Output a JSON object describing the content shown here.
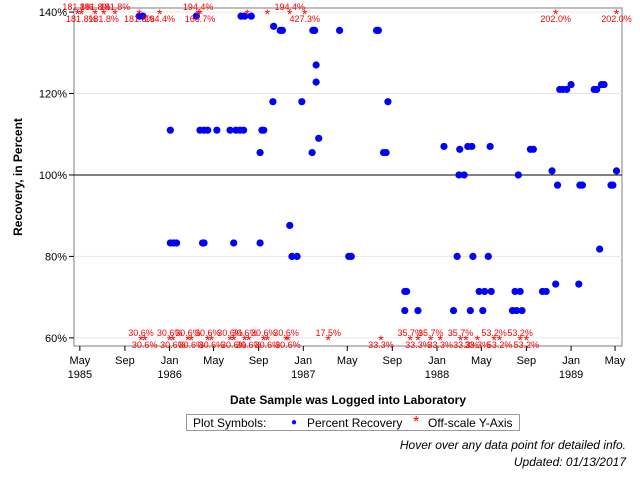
{
  "chart_data": {
    "type": "scatter",
    "xlabel": "Date Sample was Logged into Laboratory",
    "ylabel": "Recovery, in Percent",
    "xlim": [
      "1985-04-15",
      "1989-05-20"
    ],
    "ylim": [
      58,
      141
    ],
    "reference_line": 100,
    "grid": "horizontal",
    "x_ticks": [
      {
        "date": "1985-05-01",
        "label": "May",
        "sub": "1985"
      },
      {
        "date": "1985-09-01",
        "label": "Sep",
        "sub": ""
      },
      {
        "date": "1986-01-01",
        "label": "Jan",
        "sub": "1986"
      },
      {
        "date": "1986-05-01",
        "label": "May",
        "sub": ""
      },
      {
        "date": "1986-09-01",
        "label": "Sep",
        "sub": ""
      },
      {
        "date": "1987-01-01",
        "label": "Jan",
        "sub": "1987"
      },
      {
        "date": "1987-05-01",
        "label": "May",
        "sub": ""
      },
      {
        "date": "1987-09-01",
        "label": "Sep",
        "sub": ""
      },
      {
        "date": "1988-01-01",
        "label": "Jan",
        "sub": "1988"
      },
      {
        "date": "1988-05-01",
        "label": "May",
        "sub": ""
      },
      {
        "date": "1988-09-01",
        "label": "Sep",
        "sub": ""
      },
      {
        "date": "1989-01-01",
        "label": "Jan",
        "sub": "1989"
      },
      {
        "date": "1989-05-01",
        "label": "May",
        "sub": ""
      }
    ],
    "y_ticks": [
      {
        "value": 60,
        "label": "60%"
      },
      {
        "value": 80,
        "label": "80%"
      },
      {
        "value": 100,
        "label": "100%"
      },
      {
        "value": 120,
        "label": "120%"
      },
      {
        "value": 140,
        "label": "140%"
      }
    ],
    "series": [
      {
        "name": "Percent Recovery",
        "color": "#0000ff",
        "symbol": "circle",
        "points": [
          {
            "x": "1985-10-10",
            "y": 139
          },
          {
            "x": "1985-10-20",
            "y": 139
          },
          {
            "x": "1986-01-03",
            "y": 111
          },
          {
            "x": "1986-01-03",
            "y": 83.3
          },
          {
            "x": "1986-01-12",
            "y": 83.3
          },
          {
            "x": "1986-01-20",
            "y": 83.3
          },
          {
            "x": "1986-03-15",
            "y": 139
          },
          {
            "x": "1986-03-25",
            "y": 111
          },
          {
            "x": "1986-04-01",
            "y": 83.3
          },
          {
            "x": "1986-04-05",
            "y": 83.3
          },
          {
            "x": "1986-04-05",
            "y": 111
          },
          {
            "x": "1986-04-15",
            "y": 111
          },
          {
            "x": "1986-05-10",
            "y": 111
          },
          {
            "x": "1986-06-15",
            "y": 111
          },
          {
            "x": "1986-06-25",
            "y": 83.3
          },
          {
            "x": "1986-07-01",
            "y": 111
          },
          {
            "x": "1986-07-12",
            "y": 111
          },
          {
            "x": "1986-07-15",
            "y": 139
          },
          {
            "x": "1986-07-22",
            "y": 111
          },
          {
            "x": "1986-07-25",
            "y": 139
          },
          {
            "x": "1986-08-12",
            "y": 139
          },
          {
            "x": "1986-09-05",
            "y": 105.5
          },
          {
            "x": "1986-09-05",
            "y": 83.3
          },
          {
            "x": "1986-09-10",
            "y": 111
          },
          {
            "x": "1986-09-15",
            "y": 111
          },
          {
            "x": "1986-10-10",
            "y": 118
          },
          {
            "x": "1986-10-12",
            "y": 136.5
          },
          {
            "x": "1986-10-30",
            "y": 135.5
          },
          {
            "x": "1986-11-05",
            "y": 135.5
          },
          {
            "x": "1986-11-25",
            "y": 87.6
          },
          {
            "x": "1986-12-01",
            "y": 80
          },
          {
            "x": "1986-12-15",
            "y": 80
          },
          {
            "x": "1986-12-28",
            "y": 118
          },
          {
            "x": "1987-01-25",
            "y": 105.5
          },
          {
            "x": "1987-01-27",
            "y": 135.5
          },
          {
            "x": "1987-02-01",
            "y": 135.5
          },
          {
            "x": "1987-02-05",
            "y": 127
          },
          {
            "x": "1987-02-05",
            "y": 122.8
          },
          {
            "x": "1987-02-12",
            "y": 109
          },
          {
            "x": "1987-04-10",
            "y": 135.5
          },
          {
            "x": "1987-05-05",
            "y": 80
          },
          {
            "x": "1987-05-12",
            "y": 80
          },
          {
            "x": "1987-07-20",
            "y": 135.5
          },
          {
            "x": "1987-07-25",
            "y": 135.5
          },
          {
            "x": "1987-08-08",
            "y": 105.5
          },
          {
            "x": "1987-08-15",
            "y": 105.5
          },
          {
            "x": "1987-08-20",
            "y": 118
          },
          {
            "x": "1987-10-05",
            "y": 71.4
          },
          {
            "x": "1987-10-10",
            "y": 71.4
          },
          {
            "x": "1987-10-05",
            "y": 66.7
          },
          {
            "x": "1987-11-10",
            "y": 66.7
          },
          {
            "x": "1988-01-20",
            "y": 107
          },
          {
            "x": "1988-02-15",
            "y": 66.7
          },
          {
            "x": "1988-02-25",
            "y": 80
          },
          {
            "x": "1988-03-01",
            "y": 100
          },
          {
            "x": "1988-03-03",
            "y": 106.3
          },
          {
            "x": "1988-03-15",
            "y": 100
          },
          {
            "x": "1988-03-25",
            "y": 107
          },
          {
            "x": "1988-04-01",
            "y": 66.7
          },
          {
            "x": "1988-04-05",
            "y": 107
          },
          {
            "x": "1988-04-08",
            "y": 80
          },
          {
            "x": "1988-04-25",
            "y": 71.4
          },
          {
            "x": "1988-05-05",
            "y": 66.7
          },
          {
            "x": "1988-05-10",
            "y": 71.4
          },
          {
            "x": "1988-05-20",
            "y": 80
          },
          {
            "x": "1988-05-25",
            "y": 107
          },
          {
            "x": "1988-05-28",
            "y": 71.4
          },
          {
            "x": "1988-07-25",
            "y": 66.7
          },
          {
            "x": "1988-08-01",
            "y": 71.4
          },
          {
            "x": "1988-08-05",
            "y": 66.7
          },
          {
            "x": "1988-08-10",
            "y": 100
          },
          {
            "x": "1988-08-15",
            "y": 71.4
          },
          {
            "x": "1988-08-20",
            "y": 66.7
          },
          {
            "x": "1988-09-12",
            "y": 106.3
          },
          {
            "x": "1988-09-20",
            "y": 106.3
          },
          {
            "x": "1988-10-15",
            "y": 71.4
          },
          {
            "x": "1988-10-25",
            "y": 71.4
          },
          {
            "x": "1988-11-10",
            "y": 101
          },
          {
            "x": "1988-11-20",
            "y": 73.2
          },
          {
            "x": "1988-11-25",
            "y": 97.5
          },
          {
            "x": "1988-12-01",
            "y": 121
          },
          {
            "x": "1988-12-10",
            "y": 121
          },
          {
            "x": "1988-12-20",
            "y": 121
          },
          {
            "x": "1989-01-01",
            "y": 122.2
          },
          {
            "x": "1989-01-22",
            "y": 73.2
          },
          {
            "x": "1989-01-25",
            "y": 97.5
          },
          {
            "x": "1989-02-01",
            "y": 97.5
          },
          {
            "x": "1989-03-05",
            "y": 121
          },
          {
            "x": "1989-03-12",
            "y": 121
          },
          {
            "x": "1989-03-20",
            "y": 81.8
          },
          {
            "x": "1989-03-25",
            "y": 122.2
          },
          {
            "x": "1989-04-01",
            "y": 122.2
          },
          {
            "x": "1989-04-20",
            "y": 97.5
          },
          {
            "x": "1989-04-25",
            "y": 97.5
          },
          {
            "x": "1989-05-05",
            "y": 101
          }
        ]
      },
      {
        "name": "Off-scale Y-Axis",
        "color": "#ff0000",
        "symbol": "star",
        "points": [
          {
            "x": "1985-04-25",
            "y": 140,
            "label": "181.8%",
            "side": "above"
          },
          {
            "x": "1985-05-05",
            "y": 140,
            "label": "181.8%",
            "side": "below"
          },
          {
            "x": "1985-06-12",
            "y": 140,
            "label": "181.8%",
            "side": "above"
          },
          {
            "x": "1985-07-05",
            "y": 140,
            "label": "181.8%",
            "side": "below"
          },
          {
            "x": "1985-08-05",
            "y": 140,
            "label": "181.8%",
            "side": "above"
          },
          {
            "x": "1985-10-10",
            "y": 140,
            "label": "181.8%",
            "side": "below"
          },
          {
            "x": "1985-12-05",
            "y": 140,
            "label": "194.4%",
            "side": "below"
          },
          {
            "x": "1986-03-20",
            "y": 140,
            "label": "194.4%",
            "side": "above"
          },
          {
            "x": "1986-03-25",
            "y": 140,
            "label": "166.7%",
            "side": "below"
          },
          {
            "x": "1986-08-01",
            "y": 140,
            "label": "",
            "side": "above"
          },
          {
            "x": "1986-09-25",
            "y": 140,
            "label": "",
            "side": "above"
          },
          {
            "x": "1986-11-25",
            "y": 140,
            "label": "194.4%",
            "side": "above"
          },
          {
            "x": "1987-01-05",
            "y": 140,
            "label": "427.3%",
            "side": "below"
          },
          {
            "x": "1988-11-20",
            "y": 140,
            "label": "202.0%",
            "side": "below"
          },
          {
            "x": "1989-05-05",
            "y": 140,
            "label": "202.0%",
            "side": "below"
          },
          {
            "x": "1985-10-15",
            "y": 60,
            "label": "30.6%",
            "side": "above"
          },
          {
            "x": "1985-10-25",
            "y": 60,
            "label": "30.6%",
            "side": "below"
          },
          {
            "x": "1986-01-01",
            "y": 60,
            "label": "30.6%",
            "side": "above"
          },
          {
            "x": "1986-01-10",
            "y": 60,
            "label": "30.6%",
            "side": "below"
          },
          {
            "x": "1986-02-20",
            "y": 60,
            "label": "30.6%",
            "side": "above"
          },
          {
            "x": "1986-03-01",
            "y": 60,
            "label": "30.6%",
            "side": "below"
          },
          {
            "x": "1986-04-15",
            "y": 60,
            "label": "30.6%",
            "side": "above"
          },
          {
            "x": "1986-04-25",
            "y": 60,
            "label": "30.6%",
            "side": "below"
          },
          {
            "x": "1986-06-15",
            "y": 60,
            "label": "30.6%",
            "side": "above"
          },
          {
            "x": "1986-06-25",
            "y": 60,
            "label": "30.6%",
            "side": "below"
          },
          {
            "x": "1986-07-25",
            "y": 60,
            "label": "30.6%",
            "side": "above"
          },
          {
            "x": "1986-08-05",
            "y": 60,
            "label": "30.6%",
            "side": "below"
          },
          {
            "x": "1986-09-15",
            "y": 60,
            "label": "30.6%",
            "side": "above"
          },
          {
            "x": "1986-09-25",
            "y": 60,
            "label": "30.6%",
            "side": "below"
          },
          {
            "x": "1986-11-15",
            "y": 60,
            "label": "30.6%",
            "side": "above"
          },
          {
            "x": "1986-11-20",
            "y": 60,
            "label": "30.6%",
            "side": "below"
          },
          {
            "x": "1987-03-10",
            "y": 60,
            "label": "17.5%",
            "side": "above"
          },
          {
            "x": "1987-08-01",
            "y": 60,
            "label": "33.3%",
            "side": "below"
          },
          {
            "x": "1987-10-20",
            "y": 60,
            "label": "35.7%",
            "side": "above"
          },
          {
            "x": "1987-11-10",
            "y": 60,
            "label": "33.3%",
            "side": "below"
          },
          {
            "x": "1987-12-15",
            "y": 60,
            "label": "35.7%",
            "side": "above"
          },
          {
            "x": "1988-01-10",
            "y": 60,
            "label": "33.3%",
            "side": "below"
          },
          {
            "x": "1988-03-05",
            "y": 60,
            "label": "35.7%",
            "side": "above"
          },
          {
            "x": "1988-03-20",
            "y": 60,
            "label": "33.3%",
            "side": "below"
          },
          {
            "x": "1988-04-20",
            "y": 60,
            "label": "33.3%",
            "side": "below"
          },
          {
            "x": "1988-06-05",
            "y": 60,
            "label": "53.2%",
            "side": "above"
          },
          {
            "x": "1988-06-20",
            "y": 60,
            "label": "53.2%",
            "side": "below"
          },
          {
            "x": "1988-08-15",
            "y": 60,
            "label": "53.2%",
            "side": "above"
          },
          {
            "x": "1988-09-01",
            "y": 60,
            "label": "53.2%",
            "side": "below"
          }
        ]
      }
    ]
  },
  "legend": {
    "title": "Plot Symbols:",
    "items": [
      {
        "label": "Percent Recovery",
        "symbol": "●",
        "color": "#0000ff"
      },
      {
        "label": "Off-scale Y-Axis",
        "symbol": "*",
        "color": "#ff0000"
      }
    ]
  },
  "notes": {
    "hover": "Hover over any data point for detailed info.",
    "updated": "Updated: 01/13/2017"
  }
}
